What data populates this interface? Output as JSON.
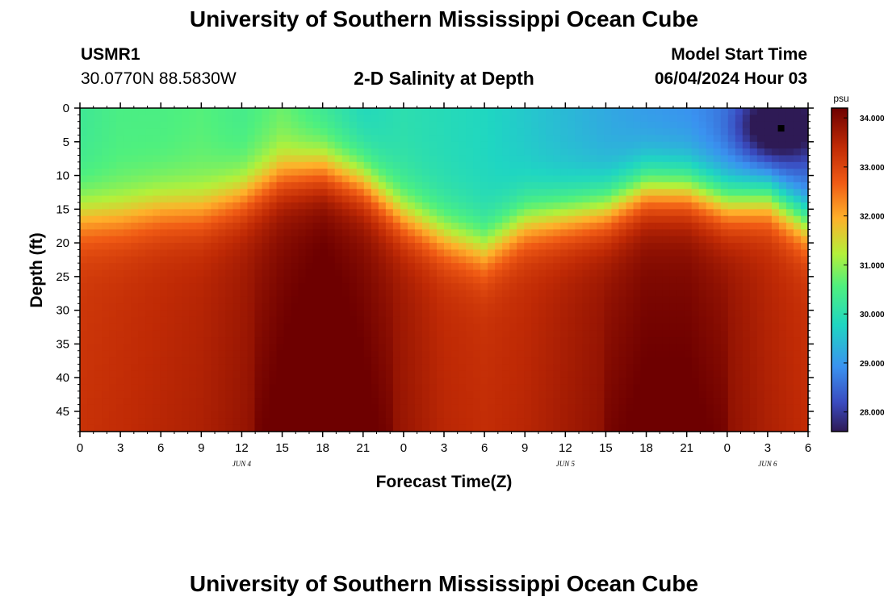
{
  "page_title": "University of Southern Mississippi Ocean Cube",
  "footer_title": "University of Southern Mississippi Ocean Cube",
  "station": {
    "id": "USMR1",
    "coords": "30.0770N  88.5830W"
  },
  "model_start": {
    "label": "Model Start Time",
    "value": "06/04/2024 Hour 03"
  },
  "chart_data": {
    "type": "heatmap",
    "title": "2-D Salinity at Depth",
    "xlabel": "Forecast Time(Z)",
    "ylabel": "Depth (ft)",
    "x_unit": "hours since Jun 4 00Z",
    "xlim": [
      0,
      54
    ],
    "ylim": [
      0,
      48
    ],
    "x_tick_values": [
      0,
      3,
      6,
      9,
      12,
      15,
      18,
      21,
      24,
      27,
      30,
      33,
      36,
      39,
      42,
      45,
      48,
      51,
      54
    ],
    "x_tick_labels": [
      "0",
      "3",
      "6",
      "9",
      "12",
      "15",
      "18",
      "21",
      "0",
      "3",
      "6",
      "9",
      "12",
      "15",
      "18",
      "21",
      "0",
      "3",
      "6"
    ],
    "y_tick_values": [
      0,
      5,
      10,
      15,
      20,
      25,
      30,
      35,
      40,
      45
    ],
    "y_tick_labels": [
      "0",
      "5",
      "10",
      "15",
      "20",
      "25",
      "30",
      "35",
      "40",
      "45"
    ],
    "date_labels": [
      {
        "text": "JUN 4",
        "x": 12
      },
      {
        "text": "JUN 5",
        "x": 36
      },
      {
        "text": "JUN 6",
        "x": 51
      }
    ],
    "colorbar": {
      "unit": "psu",
      "min": 27.6,
      "max": 34.2,
      "tick_values": [
        28,
        29,
        30,
        31,
        32,
        33,
        34
      ],
      "tick_labels": [
        "28.000",
        "29.000",
        "30.000",
        "31.000",
        "32.000",
        "33.000",
        "34.000"
      ]
    },
    "marker": {
      "x": 52,
      "y": 3
    },
    "surface_salinity": [
      {
        "t": 0,
        "s": 30.3
      },
      {
        "t": 3,
        "s": 30.5
      },
      {
        "t": 6,
        "s": 30.5
      },
      {
        "t": 9,
        "s": 30.6
      },
      {
        "t": 12,
        "s": 30.4
      },
      {
        "t": 15,
        "s": 30.7
      },
      {
        "t": 18,
        "s": 30.2
      },
      {
        "t": 21,
        "s": 29.8
      },
      {
        "t": 24,
        "s": 30.0
      },
      {
        "t": 27,
        "s": 29.9
      },
      {
        "t": 30,
        "s": 29.8
      },
      {
        "t": 33,
        "s": 29.6
      },
      {
        "t": 36,
        "s": 29.4
      },
      {
        "t": 39,
        "s": 29.2
      },
      {
        "t": 42,
        "s": 29.0
      },
      {
        "t": 45,
        "s": 28.9
      },
      {
        "t": 48,
        "s": 28.7
      },
      {
        "t": 51,
        "s": 28.0
      },
      {
        "t": 54,
        "s": 28.3
      }
    ],
    "halocline_depth_ft": [
      {
        "t": 0,
        "d": 16
      },
      {
        "t": 3,
        "d": 16
      },
      {
        "t": 6,
        "d": 15
      },
      {
        "t": 9,
        "d": 15
      },
      {
        "t": 12,
        "d": 13
      },
      {
        "t": 15,
        "d": 10
      },
      {
        "t": 18,
        "d": 9
      },
      {
        "t": 21,
        "d": 11
      },
      {
        "t": 24,
        "d": 16
      },
      {
        "t": 27,
        "d": 19
      },
      {
        "t": 30,
        "d": 21
      },
      {
        "t": 33,
        "d": 17
      },
      {
        "t": 36,
        "d": 16
      },
      {
        "t": 39,
        "d": 15
      },
      {
        "t": 42,
        "d": 12
      },
      {
        "t": 45,
        "d": 12
      },
      {
        "t": 48,
        "d": 14
      },
      {
        "t": 51,
        "d": 13
      },
      {
        "t": 54,
        "d": 17
      }
    ],
    "deep_salinity": [
      {
        "t": 0,
        "s": 33.2
      },
      {
        "t": 3,
        "s": 33.3
      },
      {
        "t": 6,
        "s": 33.4
      },
      {
        "t": 9,
        "s": 33.5
      },
      {
        "t": 12,
        "s": 33.7
      },
      {
        "t": 15,
        "s": 34.0
      },
      {
        "t": 18,
        "s": 34.2
      },
      {
        "t": 21,
        "s": 34.0
      },
      {
        "t": 24,
        "s": 33.7
      },
      {
        "t": 27,
        "s": 33.4
      },
      {
        "t": 30,
        "s": 33.3
      },
      {
        "t": 33,
        "s": 33.4
      },
      {
        "t": 36,
        "s": 33.6
      },
      {
        "t": 39,
        "s": 33.8
      },
      {
        "t": 42,
        "s": 34.0
      },
      {
        "t": 45,
        "s": 34.0
      },
      {
        "t": 48,
        "s": 33.8
      },
      {
        "t": 51,
        "s": 33.5
      },
      {
        "t": 54,
        "s": 33.3
      }
    ]
  }
}
